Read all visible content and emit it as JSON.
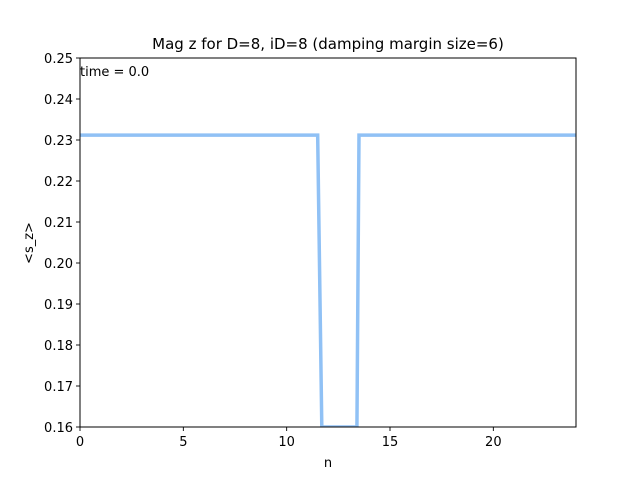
{
  "chart_data": {
    "type": "line",
    "title": "Mag z for D=8, iD=8 (damping margin size=6)",
    "xlabel": "n",
    "ylabel": "<s_z>",
    "xlim": [
      0,
      24
    ],
    "ylim": [
      0.16,
      0.25
    ],
    "xticks": [
      "0",
      "5",
      "10",
      "15",
      "20"
    ],
    "yticks": [
      "0.16",
      "0.17",
      "0.18",
      "0.19",
      "0.20",
      "0.21",
      "0.22",
      "0.23",
      "0.24",
      "0.25"
    ],
    "annotation": "time = 0.0",
    "grid": false,
    "series": [
      {
        "color": "#90c1f5",
        "x": [
          0,
          11.5,
          11.7,
          13.4,
          13.5,
          24
        ],
        "y": [
          0.2312,
          0.2312,
          0.16,
          0.16,
          0.2312,
          0.2312
        ]
      }
    ]
  }
}
